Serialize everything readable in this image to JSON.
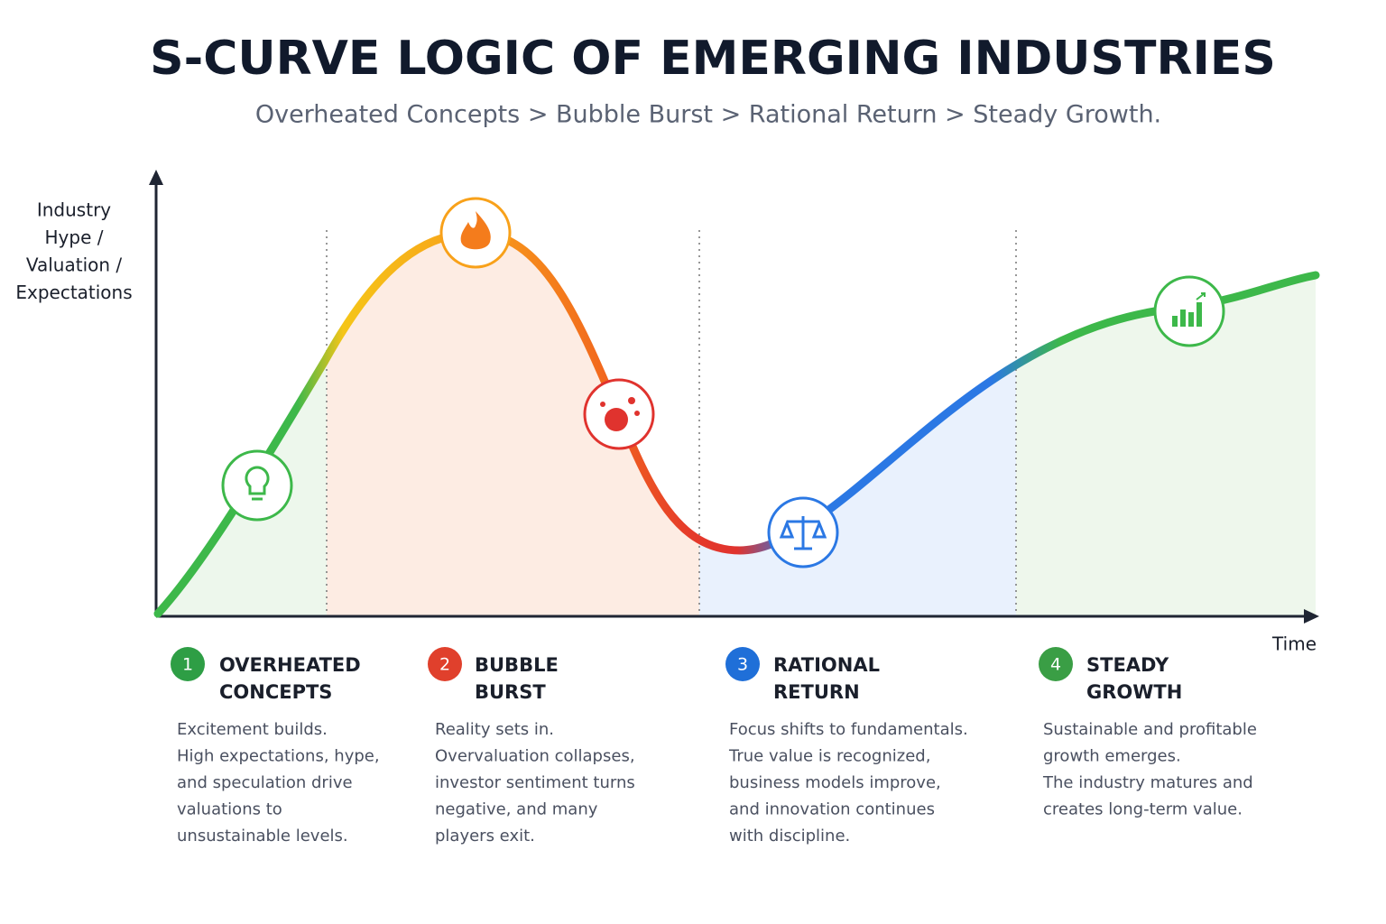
{
  "header": {
    "title": "S-CURVE LOGIC OF EMERGING INDUSTRIES",
    "subtitle": "Overheated Concepts > Bubble Burst > Rational Return > Steady Growth."
  },
  "y_axis_label": [
    "Industry",
    "Hype /",
    "Valuation /",
    "Expectations"
  ],
  "x_axis_label": "Time",
  "phases": [
    {
      "number": "1",
      "title": [
        "OVERHEATED",
        "CONCEPTS"
      ],
      "description": [
        "Excitement builds.",
        "High expectations, hype,",
        "and speculation drive",
        "valuations to",
        "unsustainable levels."
      ]
    },
    {
      "number": "2",
      "title": [
        "BUBBLE",
        "BURST"
      ],
      "description": [
        "Reality sets in.",
        "Overvaluation collapses,",
        "investor sentiment turns",
        "negative, and many",
        "players exit."
      ]
    },
    {
      "number": "3",
      "title": [
        "RATIONAL",
        "RETURN"
      ],
      "description": [
        "Focus shifts to fundamentals.",
        "True value is recognized,",
        "business models improve,",
        "and innovation continues",
        "with discipline."
      ]
    },
    {
      "number": "4",
      "title": [
        "STEADY",
        "GROWTH"
      ],
      "description": [
        "Sustainable and profitable",
        "growth emerges.",
        "The industry matures and",
        "creates long-term value."
      ]
    }
  ]
}
